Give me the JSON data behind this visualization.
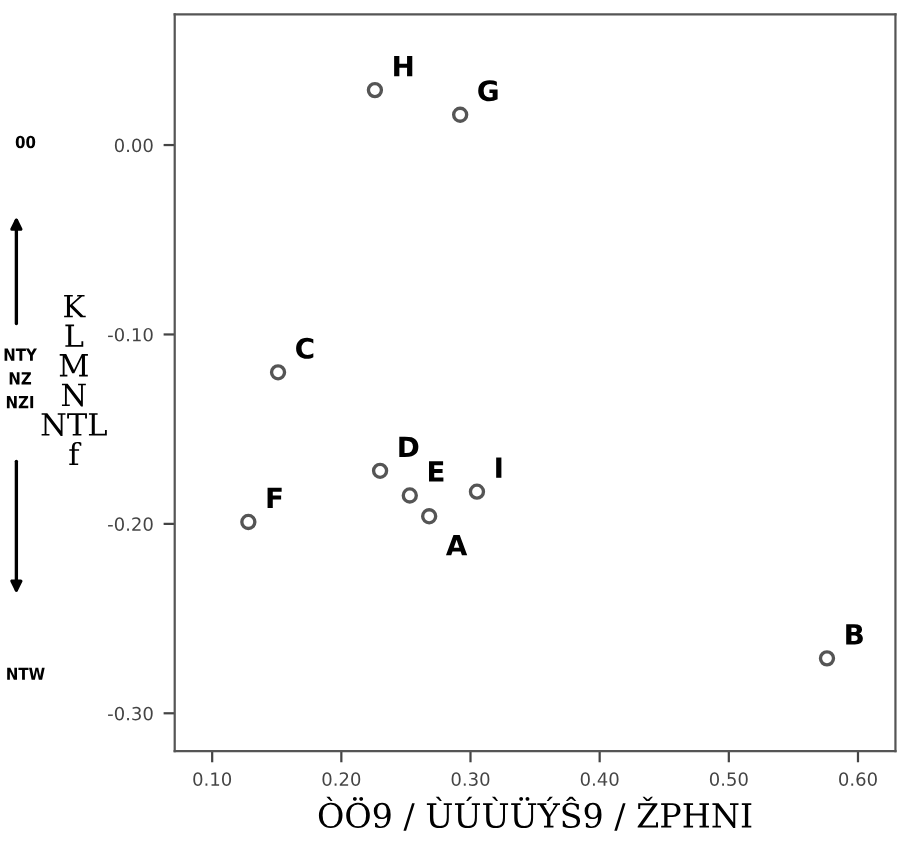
{
  "chart_data": {
    "type": "scatter",
    "x": [
      0.226,
      0.292,
      0.151,
      0.23,
      0.253,
      0.305,
      0.268,
      0.128,
      0.576
    ],
    "values": [
      0.029,
      0.016,
      -0.12,
      -0.172,
      -0.185,
      -0.183,
      -0.196,
      -0.199,
      -0.271
    ],
    "color": "#555555",
    "marker": "circle",
    "grid": false,
    "legend": false,
    "xlabel": "ÒÖ9 / ÙÚÙÜÝŜ9 / ŽPHNI",
    "ylabel": "K\nL\nM\nN\nNTL\nf",
    "xlim": [
      0.071,
      0.629
    ],
    "ylim": [
      -0.32,
      0.069
    ],
    "xticks": [
      {
        "value": 0.1,
        "label": "0.10"
      },
      {
        "value": 0.2,
        "label": "0.20"
      },
      {
        "value": 0.3,
        "label": "0.30"
      },
      {
        "value": 0.4,
        "label": "0.40"
      },
      {
        "value": 0.5,
        "label": "0.50"
      },
      {
        "value": 0.6,
        "label": "0.60"
      }
    ],
    "yticks": [
      {
        "value": 0.0,
        "label": "0.00"
      },
      {
        "value": -0.1,
        "label": "-0.10"
      },
      {
        "value": -0.2,
        "label": "-0.20"
      },
      {
        "value": -0.3,
        "label": "-0.30"
      }
    ],
    "annotations": [
      {
        "text": "H",
        "x": 0.226,
        "y": 0.029
      },
      {
        "text": "G",
        "x": 0.292,
        "y": 0.016
      },
      {
        "text": "C",
        "x": 0.151,
        "y": -0.12
      },
      {
        "text": "D",
        "x": 0.23,
        "y": -0.172
      },
      {
        "text": "E",
        "x": 0.253,
        "y": -0.185
      },
      {
        "text": "I",
        "x": 0.305,
        "y": -0.183
      },
      {
        "text": "A",
        "x": 0.268,
        "y": -0.196
      },
      {
        "text": "F",
        "x": 0.128,
        "y": -0.199
      },
      {
        "text": "B",
        "x": 0.576,
        "y": -0.271
      },
      "00",
      "NTY\nNZ\nNZI",
      "NTW"
    ]
  }
}
